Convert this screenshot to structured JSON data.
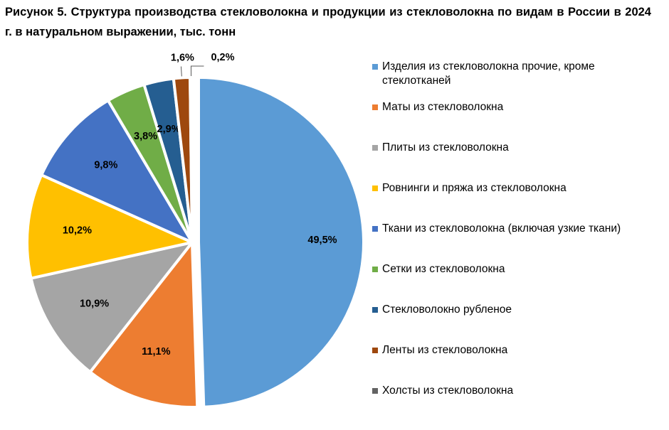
{
  "title": "Рисунок 5. Структура производства стекловолокна и продукции из стекловолокна по видам в России в 2024 г. в натуральном выражении, тыс. тонн",
  "chart_data": {
    "type": "pie",
    "title": "Рисунок 5. Структура производства стекловолокна и продукции из стекловолокна по видам в России в 2024 г. в натуральном выражении, тыс. тонн",
    "legend_position": "right",
    "slices": [
      {
        "name": "Изделия из стекловолокна прочие, кроме стеклотканей",
        "value": 49.5,
        "label": "49,5%",
        "color": "#5b9bd5"
      },
      {
        "name": "Маты из стекловолокна",
        "value": 11.1,
        "label": "11,1%",
        "color": "#ed7d31"
      },
      {
        "name": "Плиты из стекловолокна",
        "value": 10.9,
        "label": "10,9%",
        "color": "#a5a5a5"
      },
      {
        "name": "Ровнинги и пряжа из стекловолокна",
        "value": 10.2,
        "label": "10,2%",
        "color": "#ffc000"
      },
      {
        "name": "Ткани из стекловолокна (включая узкие ткани)",
        "value": 9.8,
        "label": "9,8%",
        "color": "#4472c4"
      },
      {
        "name": "Сетки из стекловолокна",
        "value": 3.8,
        "label": "3,8%",
        "color": "#70ad47"
      },
      {
        "name": "Стекловолокно рубленое",
        "value": 2.9,
        "label": "2,9%",
        "color": "#255e91"
      },
      {
        "name": "Ленты из стекловолокна",
        "value": 1.6,
        "label": "1,6%",
        "color": "#9e480e"
      },
      {
        "name": "Холсты из стекловолокна",
        "value": 0.2,
        "label": "0,2%",
        "color": "#636363"
      }
    ]
  }
}
